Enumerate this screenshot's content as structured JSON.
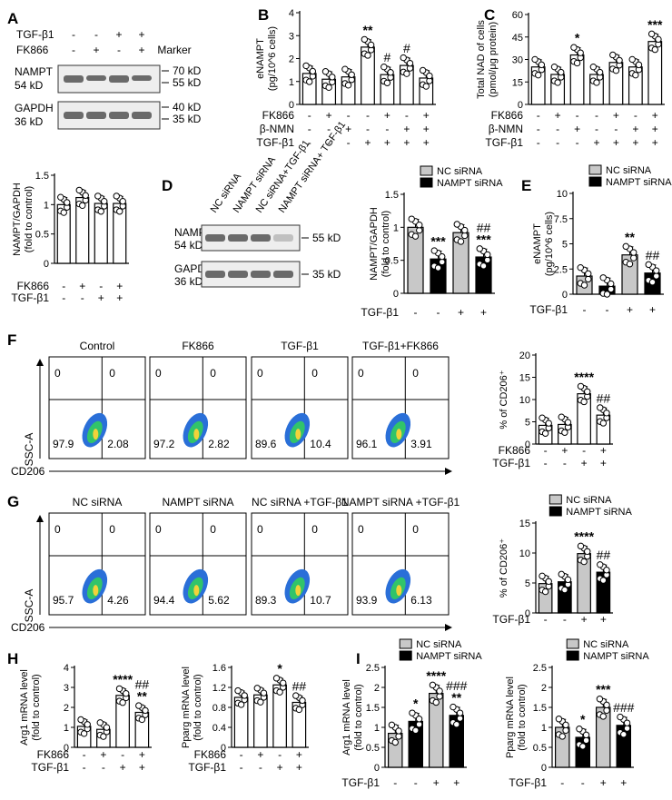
{
  "colors": {
    "open": "#ffffff",
    "gray": "#c8c8c8",
    "black": "#000000",
    "blot_bg": "#eeeeee",
    "band": "#6a6a6a",
    "flow_bg": "#ffffff"
  },
  "panel_letters": [
    "A",
    "B",
    "C",
    "D",
    "E",
    "F",
    "G",
    "H",
    "I"
  ],
  "blot_a": {
    "rows": [
      [
        "TGF-β1",
        "-",
        "-",
        "+",
        "+"
      ],
      [
        "FK866",
        "-",
        "+",
        "-",
        "+"
      ]
    ],
    "marker_label": "Marker",
    "targets": [
      {
        "name": "NAMPT",
        "size": "54 kD",
        "markers": [
          "70 kD",
          "55 kD"
        ]
      },
      {
        "name": "GAPDH",
        "size": "36 kD",
        "markers": [
          "40 kD",
          "35 kD"
        ]
      }
    ]
  },
  "blot_d": {
    "lanes": [
      "NC siRNA",
      "NAMPT siRNA",
      "NC siRNA+TGF-β1",
      "NAMPT siRNA+ TGF-β1"
    ],
    "targets": [
      {
        "name": "NAMPT",
        "size": "54 kD",
        "marker": "55 kD"
      },
      {
        "name": "GAPDH",
        "size": "36 kD",
        "marker": "35 kD"
      }
    ]
  },
  "flow": {
    "xlabel": "CD206",
    "ylabel": "SSC-A",
    "row_f": [
      {
        "title": "Control",
        "ul": "0",
        "ur": "0",
        "ll": "97.9",
        "lr": "2.08"
      },
      {
        "title": "FK866",
        "ul": "0",
        "ur": "0",
        "ll": "97.2",
        "lr": "2.82"
      },
      {
        "title": "TGF-β1",
        "ul": "0",
        "ur": "0",
        "ll": "89.6",
        "lr": "10.4"
      },
      {
        "title": "TGF-β1+FK866",
        "ul": "0",
        "ur": "0",
        "ll": "96.1",
        "lr": "3.91"
      }
    ],
    "row_g": [
      {
        "title": "NC siRNA",
        "ul": "0",
        "ur": "0",
        "ll": "95.7",
        "lr": "4.26"
      },
      {
        "title": "NAMPT siRNA",
        "ul": "0",
        "ur": "0",
        "ll": "94.4",
        "lr": "5.62"
      },
      {
        "title": "NC siRNA +TGF-β1",
        "ul": "0",
        "ur": "0",
        "ll": "89.3",
        "lr": "10.7"
      },
      {
        "title": "NAMPT siRNA +TGF-β1",
        "ul": "0",
        "ur": "0",
        "ll": "93.9",
        "lr": "6.13"
      }
    ]
  },
  "chart_data": [
    {
      "id": "A",
      "type": "bar",
      "ylabel": "NAMPT/GAPDH (fold to control)",
      "ylim": [
        0,
        1.5
      ],
      "ticks": [
        0,
        0.5,
        1.0,
        1.5
      ],
      "values": [
        1.0,
        1.12,
        1.02,
        1.02
      ],
      "fills": [
        "open",
        "open",
        "open",
        "open"
      ],
      "conditions": [
        {
          "label": "FK866",
          "values": [
            "-",
            "+",
            "-",
            "+"
          ]
        },
        {
          "label": "TGF-β1",
          "values": [
            "-",
            "-",
            "+",
            "+"
          ]
        }
      ],
      "annotations": [],
      "legend": null
    },
    {
      "id": "B",
      "type": "bar",
      "ylabel": "eNAMPT (pg/10^6 cells)",
      "ylim": [
        0,
        4
      ],
      "ticks": [
        0,
        1,
        2,
        3,
        4
      ],
      "values": [
        1.35,
        1.1,
        1.2,
        2.5,
        1.3,
        1.7,
        1.15
      ],
      "fills": [
        "open",
        "open",
        "open",
        "open",
        "open",
        "open",
        "open"
      ],
      "conditions": [
        {
          "label": "FK866",
          "values": [
            "-",
            "+",
            "-",
            "-",
            "+",
            "-",
            "+"
          ]
        },
        {
          "label": "β-NMN",
          "values": [
            "-",
            "-",
            "+",
            "-",
            "-",
            "+",
            "+"
          ]
        },
        {
          "label": "TGF-β1",
          "values": [
            "-",
            "-",
            "-",
            "+",
            "+",
            "+",
            "+"
          ]
        }
      ],
      "annotations": [
        "",
        "",
        "",
        "**",
        "#",
        "#",
        ""
      ],
      "legend": null
    },
    {
      "id": "C",
      "type": "bar",
      "ylabel": "Total NAD of cells (pmol/μg protein)",
      "ylim": [
        0,
        60
      ],
      "ticks": [
        0,
        15,
        30,
        45,
        60
      ],
      "values": [
        25,
        20,
        33,
        20,
        28,
        25,
        42
      ],
      "fills": [
        "open",
        "open",
        "open",
        "open",
        "open",
        "open",
        "open"
      ],
      "conditions": [
        {
          "label": "FK866",
          "values": [
            "-",
            "+",
            "-",
            "-",
            "+",
            "-",
            "+"
          ]
        },
        {
          "label": "β-NMN",
          "values": [
            "-",
            "-",
            "+",
            "-",
            "-",
            "+",
            "+"
          ]
        },
        {
          "label": "TGF-β1",
          "values": [
            "-",
            "-",
            "-",
            "+",
            "+",
            "+",
            "+"
          ]
        }
      ],
      "annotations": [
        "",
        "",
        "*",
        "",
        "",
        "",
        "***"
      ],
      "legend": null
    },
    {
      "id": "D",
      "type": "bar",
      "ylabel": "NAMPT/GAPDH (fold to control)",
      "ylim": [
        0,
        1.5
      ],
      "ticks": [
        0,
        0.5,
        1.0,
        1.5
      ],
      "values": [
        1.0,
        0.52,
        0.92,
        0.55
      ],
      "fills": [
        "gray",
        "black",
        "gray",
        "black"
      ],
      "conditions": [
        {
          "label": "TGF-β1",
          "values": [
            "-",
            "-",
            "+",
            "+"
          ]
        }
      ],
      "annotations": [
        "",
        "***",
        "",
        "##\n***"
      ],
      "legend": {
        "labels": [
          "NC siRNA",
          "NAMPT siRNA"
        ],
        "fills": [
          "gray",
          "black"
        ]
      }
    },
    {
      "id": "E",
      "type": "bar",
      "ylabel": "eNAMPT (pg/10^6 cells)",
      "ylim": [
        0,
        10
      ],
      "ticks": [
        0,
        2.5,
        5,
        7.5,
        10
      ],
      "values": [
        1.8,
        0.8,
        3.9,
        2.1
      ],
      "fills": [
        "gray",
        "black",
        "gray",
        "black"
      ],
      "conditions": [
        {
          "label": "TGF-β1",
          "values": [
            "-",
            "-",
            "+",
            "+"
          ]
        }
      ],
      "annotations": [
        "",
        "",
        "**",
        "##"
      ],
      "legend": {
        "labels": [
          "NC siRNA",
          "NAMPT siRNA"
        ],
        "fills": [
          "gray",
          "black"
        ]
      }
    },
    {
      "id": "F",
      "type": "bar",
      "ylabel": "% of CD206⁺",
      "ylim": [
        0,
        20
      ],
      "ticks": [
        0,
        5,
        10,
        15,
        20
      ],
      "values": [
        4.2,
        4.4,
        11.3,
        6.5
      ],
      "fills": [
        "open",
        "open",
        "open",
        "open"
      ],
      "conditions": [
        {
          "label": "FK866",
          "values": [
            "-",
            "+",
            "-",
            "+"
          ]
        },
        {
          "label": "TGF-β1",
          "values": [
            "-",
            "-",
            "+",
            "+"
          ]
        }
      ],
      "annotations": [
        "",
        "",
        "****",
        "##"
      ],
      "legend": null
    },
    {
      "id": "G",
      "type": "bar",
      "ylabel": "% of CD206⁺",
      "ylim": [
        0,
        15
      ],
      "ticks": [
        0,
        5,
        10,
        15
      ],
      "values": [
        4.9,
        5.2,
        9.9,
        6.8
      ],
      "fills": [
        "gray",
        "black",
        "gray",
        "black"
      ],
      "conditions": [
        {
          "label": "TGF-β1",
          "values": [
            "-",
            "-",
            "+",
            "+"
          ]
        }
      ],
      "annotations": [
        "",
        "",
        "****",
        "##"
      ],
      "legend": {
        "labels": [
          "NC siRNA",
          "NAMPT siRNA"
        ],
        "fills": [
          "gray",
          "black"
        ]
      }
    },
    {
      "id": "H1",
      "type": "bar",
      "ylabel": "Arg1 mRNA level (fold to control)",
      "ylim": [
        0,
        4
      ],
      "ticks": [
        0,
        1,
        2,
        3,
        4
      ],
      "values": [
        1.05,
        0.9,
        2.6,
        1.75
      ],
      "fills": [
        "open",
        "open",
        "open",
        "open"
      ],
      "conditions": [
        {
          "label": "FK866",
          "values": [
            "-",
            "+",
            "-",
            "+"
          ]
        },
        {
          "label": "TGF-β1",
          "values": [
            "-",
            "-",
            "+",
            "+"
          ]
        }
      ],
      "annotations": [
        "",
        "",
        "****",
        "##\n**"
      ],
      "legend": null
    },
    {
      "id": "H2",
      "type": "bar",
      "ylabel": "Pparg mRNA level (fold to control)",
      "ylim": [
        0,
        1.6
      ],
      "ticks": [
        0,
        0.4,
        0.8,
        1.2,
        1.6
      ],
      "values": [
        1.0,
        1.05,
        1.25,
        0.9
      ],
      "fills": [
        "open",
        "open",
        "open",
        "open"
      ],
      "conditions": [
        {
          "label": "FK866",
          "values": [
            "-",
            "+",
            "-",
            "+"
          ]
        },
        {
          "label": "TGF-β1",
          "values": [
            "-",
            "-",
            "+",
            "+"
          ]
        }
      ],
      "annotations": [
        "",
        "",
        "*",
        "##"
      ],
      "legend": null
    },
    {
      "id": "I1",
      "type": "bar",
      "ylabel": "Arg1 mRNA level (fold to control)",
      "ylim": [
        0,
        2.5
      ],
      "ticks": [
        0,
        0.5,
        1.0,
        1.5,
        2.0,
        2.5
      ],
      "values": [
        0.85,
        1.15,
        1.85,
        1.3
      ],
      "fills": [
        "gray",
        "black",
        "gray",
        "black"
      ],
      "conditions": [
        {
          "label": "TGF-β1",
          "values": [
            "-",
            "-",
            "+",
            "+"
          ]
        }
      ],
      "annotations": [
        "",
        "*",
        "****",
        "###\n**"
      ],
      "legend": {
        "labels": [
          "NC siRNA",
          "NAMPT siRNA"
        ],
        "fills": [
          "gray",
          "black"
        ]
      }
    },
    {
      "id": "I2",
      "type": "bar",
      "ylabel": "Pparg mRNA level (fold to control)",
      "ylim": [
        0,
        2.5
      ],
      "ticks": [
        0,
        0.5,
        1.0,
        1.5,
        2.0,
        2.5
      ],
      "values": [
        1.0,
        0.75,
        1.5,
        1.05
      ],
      "fills": [
        "gray",
        "black",
        "gray",
        "black"
      ],
      "conditions": [
        {
          "label": "TGF-β1",
          "values": [
            "-",
            "-",
            "+",
            "+"
          ]
        }
      ],
      "annotations": [
        "",
        "*",
        "***",
        "###"
      ],
      "legend": {
        "labels": [
          "NC siRNA",
          "NAMPT siRNA"
        ],
        "fills": [
          "gray",
          "black"
        ]
      }
    }
  ]
}
